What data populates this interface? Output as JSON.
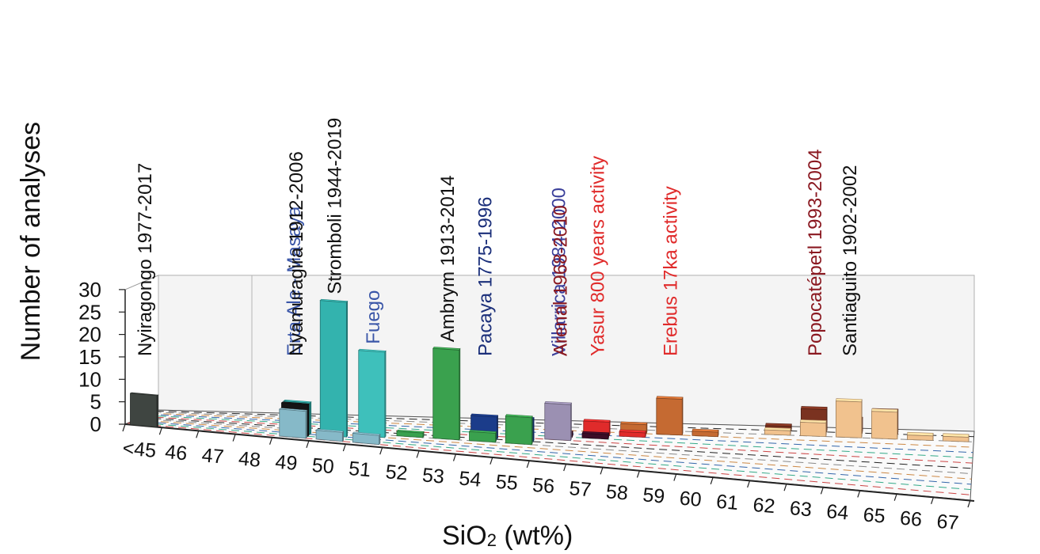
{
  "chart_data": {
    "type": "bar",
    "subtype": "3d-grouped-histogram",
    "title": "",
    "xlabel": "SiO",
    "xlabel_sub": "2",
    "xlabel_unit": " (wt%)",
    "ylabel": "Number of analyses",
    "ylim": [
      0,
      30
    ],
    "yticks": [
      "0",
      "5",
      "10",
      "15",
      "20",
      "25",
      "30"
    ],
    "categories": [
      "<45",
      "46",
      "47",
      "48",
      "49",
      "50",
      "51",
      "52",
      "53",
      "54",
      "55",
      "56",
      "57",
      "58",
      "59",
      "60",
      "61",
      "62",
      "63",
      "64",
      "65",
      "66",
      "67"
    ],
    "grid": true,
    "series": [
      {
        "name": "Nyiragongo 1977-2017",
        "color": "#3f4541",
        "values": [
          7,
          0,
          0,
          0,
          0,
          0,
          0,
          0,
          0,
          0,
          0,
          0,
          0,
          0,
          0,
          0,
          0,
          0,
          0,
          0,
          0,
          0,
          0
        ]
      },
      {
        "name": "Erta Ale - Masaya",
        "color": "#86b9c8",
        "values": [
          0,
          0,
          0,
          0,
          6,
          2,
          2,
          0,
          0,
          0,
          0,
          0,
          0,
          0,
          0,
          0,
          0,
          0,
          0,
          0,
          0,
          0,
          0
        ]
      },
      {
        "name": "Nyamuragira 1912-2006",
        "color": "#151515",
        "values": [
          0,
          0,
          0,
          0,
          7,
          0,
          0,
          0,
          0,
          0,
          0,
          0,
          0,
          0,
          0,
          0,
          0,
          0,
          0,
          0,
          0,
          0,
          0
        ]
      },
      {
        "name": "Stromboli 1944-2019",
        "color": "#33b3ae",
        "values": [
          0,
          0,
          0,
          0,
          7,
          30,
          0,
          0,
          0,
          0,
          0,
          0,
          0,
          0,
          0,
          0,
          0,
          0,
          0,
          0,
          0,
          0,
          0
        ]
      },
      {
        "name": "Fuego",
        "color": "#3ec0bb",
        "values": [
          0,
          0,
          0,
          0,
          0,
          0,
          19,
          0,
          0,
          0,
          0,
          0,
          0,
          0,
          0,
          0,
          0,
          0,
          0,
          0,
          0,
          0,
          0
        ]
      },
      {
        "name": "Ambrym 1913-2014",
        "color": "#3aa14e",
        "values": [
          0,
          0,
          0,
          0,
          0,
          0,
          0,
          1,
          20,
          2,
          6,
          0,
          0,
          0,
          0,
          0,
          0,
          0,
          0,
          0,
          0,
          0,
          0
        ]
      },
      {
        "name": "Pacaya 1775-1996",
        "color": "#1b3c8a",
        "values": [
          0,
          0,
          0,
          0,
          0,
          0,
          0,
          0,
          0,
          5,
          5,
          0,
          0,
          0,
          0,
          0,
          0,
          0,
          0,
          0,
          0,
          0,
          0
        ]
      },
      {
        "name": "Villarrica 1984-2000",
        "color": "#9b90b2",
        "values": [
          0,
          0,
          0,
          0,
          0,
          0,
          0,
          0,
          0,
          0,
          0,
          8,
          0,
          0,
          0,
          0,
          0,
          0,
          0,
          0,
          0,
          0,
          0
        ]
      },
      {
        "name": "Arenal 1968-2010",
        "color": "#3c0d26",
        "values": [
          0,
          0,
          0,
          0,
          0,
          0,
          0,
          0,
          0,
          0,
          0,
          1,
          1,
          0,
          0,
          0,
          0,
          0,
          0,
          0,
          0,
          0,
          0
        ]
      },
      {
        "name": "Yasur 800 years activity",
        "color": "#e02b2b",
        "values": [
          0,
          0,
          0,
          0,
          0,
          0,
          0,
          0,
          0,
          0,
          0,
          0,
          3,
          1,
          0,
          0,
          0,
          0,
          0,
          0,
          0,
          0,
          0
        ]
      },
      {
        "name": "Erebus 17ka activity",
        "color": "#c56a32",
        "values": [
          0,
          0,
          0,
          0,
          0,
          0,
          0,
          0,
          0,
          0,
          0,
          0,
          0,
          2,
          8,
          1,
          0,
          0,
          0,
          0,
          0,
          0,
          0
        ]
      },
      {
        "name": "Santiaguito 1902-2002",
        "color": "#f1c28e",
        "values": [
          0,
          0,
          0,
          0,
          0,
          0,
          0,
          0,
          0,
          0,
          0,
          0,
          0,
          0,
          0,
          0,
          0,
          1,
          3,
          8,
          6,
          1,
          1
        ]
      },
      {
        "name": "Popocatépetl 1993-2004",
        "color": "#7a3220",
        "values": [
          0,
          0,
          0,
          0,
          0,
          0,
          0,
          0,
          0,
          0,
          0,
          0,
          0,
          0,
          0,
          0,
          0,
          1,
          5,
          3,
          5,
          0,
          0
        ]
      }
    ]
  }
}
